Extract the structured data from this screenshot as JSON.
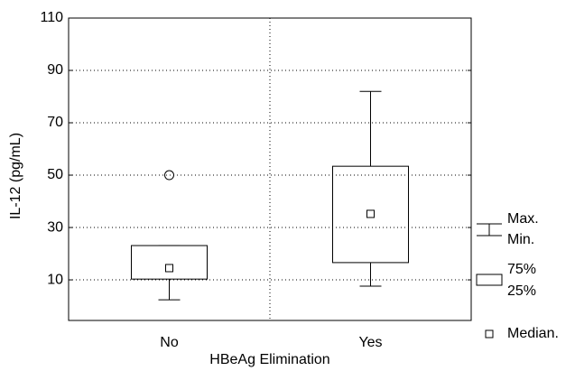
{
  "chart_data": {
    "type": "box",
    "categories": [
      "No",
      "Yes"
    ],
    "boxes": [
      {
        "min": 2.4,
        "q1": 10.3,
        "median": 14.5,
        "q3": 23.1,
        "max": 23.1,
        "outliers": [
          50
        ]
      },
      {
        "min": 7.6,
        "q1": 16.6,
        "median": 35.2,
        "q3": 53.4,
        "max": 82,
        "outliers": []
      }
    ],
    "xlabel": "HBeAg Elimination",
    "ylabel": "IL-12 (pg/mL)",
    "ylim": [
      -5.5,
      110
    ],
    "yticks": [
      10,
      30,
      50,
      70,
      90,
      110
    ],
    "grid": true,
    "legend": {
      "max": "Max.",
      "min": "Min.",
      "q3": "75%",
      "q1": "25%",
      "median": "Median."
    }
  }
}
